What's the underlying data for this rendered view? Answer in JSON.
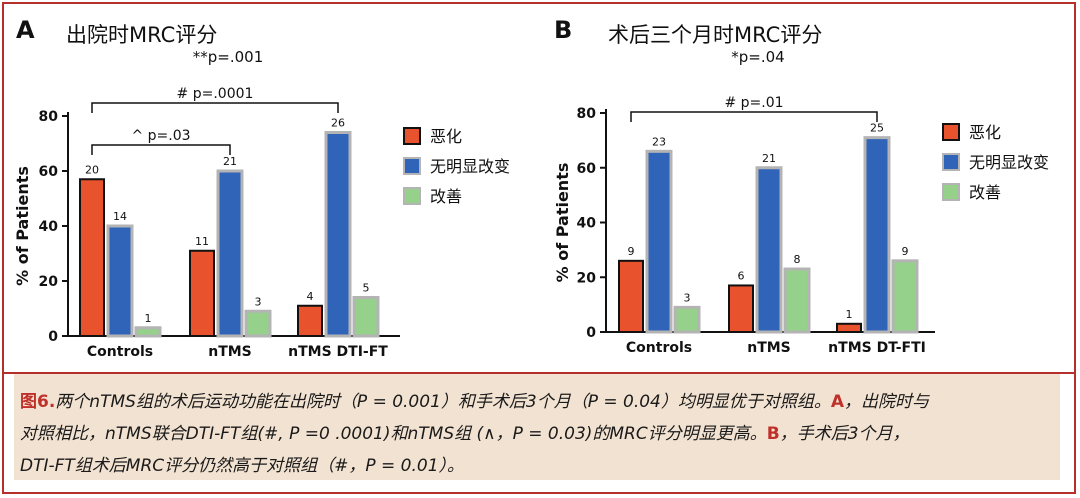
{
  "chart_data": [
    {
      "type": "bar",
      "panel_letter": "A",
      "title": "出院时MRC评分",
      "significance": "**p=.001",
      "categories": [
        "Controls",
        "nTMS",
        "nTMS DTI-FT"
      ],
      "series": [
        {
          "name": "恶化",
          "values": [
            57,
            31,
            11
          ],
          "labels": [
            "20",
            "11",
            "4"
          ]
        },
        {
          "name": "无明显改变",
          "values": [
            40,
            60,
            74
          ],
          "labels": [
            "14",
            "21",
            "26"
          ]
        },
        {
          "name": "改善",
          "values": [
            3,
            9,
            14
          ],
          "labels": [
            "1",
            "3",
            "5"
          ]
        }
      ],
      "ylabel": "% of Patients",
      "yticks": [
        "0",
        "20",
        "40",
        "60",
        "80"
      ],
      "ylim": [
        0,
        80
      ],
      "brackets": [
        {
          "text": "# p=.0001",
          "from": 0,
          "to": 2
        },
        {
          "text": "^ p=.03",
          "from": 0,
          "to": 1
        }
      ],
      "legend": "right"
    },
    {
      "type": "bar",
      "panel_letter": "B",
      "title": "术后三个月时MRC评分",
      "significance": "*p=.04",
      "categories": [
        "Controls",
        "nTMS",
        "nTMS DT-FTI"
      ],
      "series": [
        {
          "name": "恶化",
          "values": [
            26,
            17,
            3
          ],
          "labels": [
            "9",
            "6",
            "1"
          ]
        },
        {
          "name": "无明显改变",
          "values": [
            66,
            60,
            71
          ],
          "labels": [
            "23",
            "21",
            "25"
          ]
        },
        {
          "name": "改善",
          "values": [
            9,
            23,
            26
          ],
          "labels": [
            "3",
            "8",
            "9"
          ]
        }
      ],
      "ylabel": "% of Patients",
      "yticks": [
        "0",
        "20",
        "40",
        "60",
        "80"
      ],
      "ylim": [
        0,
        80
      ],
      "brackets": [
        {
          "text": "# p=.01",
          "from": 0,
          "to": 2
        }
      ],
      "legend": "right"
    }
  ],
  "colors": {
    "series": [
      "#e8532e",
      "#2f64b8",
      "#95d18b"
    ],
    "frame": "#b5302a",
    "caption_bg": "#f2e2d1"
  },
  "caption": {
    "line1_fig": "图6.",
    "line1_a": "两个nTMS组的术后运动功能在出院时（P = 0.001）和手术后3个月（P = 0.04）均明显优于对照组。",
    "line1_letter": "A",
    "line1_b": "，出院时与",
    "line2_a": "对照相比，nTMS联合DTI-FT组(#, P =0 .0001)和nTMS组 (∧，P = 0.03)的MRC评分明显更高。",
    "line2_letter": "B",
    "line2_b": "，手术后3个月，",
    "line3": "DTI-FT组术后MRC评分仍然高于对照组（#，P = 0.01）。"
  }
}
